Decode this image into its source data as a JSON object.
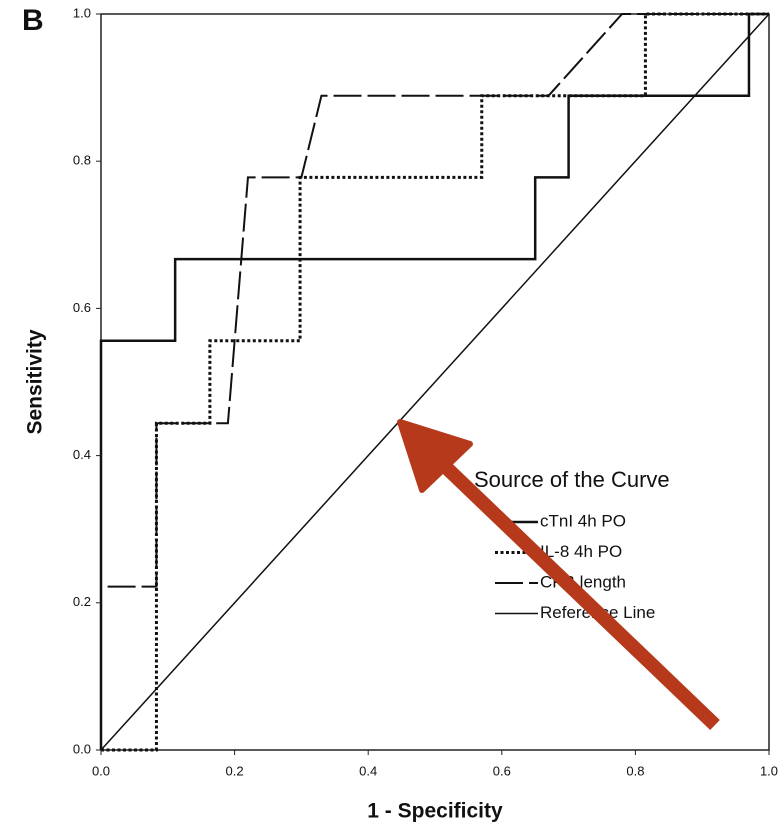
{
  "chart_data": {
    "type": "line",
    "panel_label": "B",
    "xlabel": "1 - Specificity",
    "ylabel": "Sensitivity",
    "xlim": [
      0,
      1
    ],
    "ylim": [
      0,
      1
    ],
    "xticks": [
      {
        "value": 0,
        "label": "0.0"
      },
      0.2,
      0.4,
      0.6,
      0.8,
      {
        "value": 1,
        "label": "1.0"
      }
    ],
    "yticks": [
      {
        "value": 0,
        "label": "0.0"
      },
      0.2,
      0.4,
      0.6,
      0.8,
      {
        "value": 1,
        "label": "1.0"
      }
    ],
    "legend_title": "Source of the Curve",
    "series": [
      {
        "name": "cTnI 4h PO",
        "color": "#111111",
        "style": "solid",
        "x": [
          0,
          0,
          0.111,
          0.111,
          0.65,
          0.65,
          0.7,
          0.7,
          0.97,
          0.97,
          1
        ],
        "values": [
          0,
          0.556,
          0.556,
          0.667,
          0.667,
          0.778,
          0.778,
          0.889,
          0.889,
          1,
          1
        ]
      },
      {
        "name": "IL-8 4h PO",
        "color": "#111111",
        "style": "dotted",
        "x": [
          0,
          0.083,
          0.083,
          0.163,
          0.163,
          0.298,
          0.298,
          0.57,
          0.57,
          0.815,
          0.815,
          1
        ],
        "values": [
          0,
          0,
          0.444,
          0.444,
          0.556,
          0.556,
          0.778,
          0.778,
          0.889,
          0.889,
          1,
          1
        ]
      },
      {
        "name": "CPB length",
        "color": "#111111",
        "style": "dashed",
        "x": [
          0,
          0,
          0.083,
          0.083,
          0.19,
          0.22,
          0.3,
          0.33,
          0.67,
          0.78,
          1
        ],
        "values": [
          0,
          0.222,
          0.222,
          0.444,
          0.444,
          0.778,
          0.778,
          0.889,
          0.889,
          1,
          1
        ]
      },
      {
        "name": "Reference Line",
        "color": "#111111",
        "style": "thin",
        "x": [
          0,
          1
        ],
        "values": [
          0,
          1
        ]
      }
    ]
  }
}
